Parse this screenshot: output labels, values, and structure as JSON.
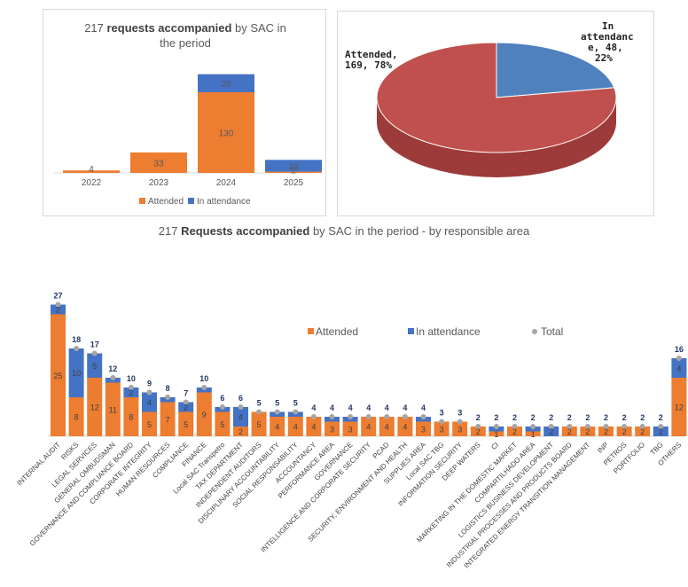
{
  "colors": {
    "attended": "#ED7D31",
    "in_attendance": "#4472C4",
    "pie_attended": "#C0504D",
    "pie_in_attendance": "#4F81BD",
    "total": "#A6A6A6",
    "total_label": "#1F3864"
  },
  "titles": {
    "years": {
      "pre": "217 ",
      "bold": "requests accompanied",
      "post": " by SAC in the period"
    },
    "area": {
      "pre": "217 ",
      "bold": "Requests accompanied",
      "post": " by SAC in the period - by responsible area"
    }
  },
  "legend": {
    "attended": "Attended",
    "in_attendance": "In attendance",
    "total": "Total"
  },
  "chart_data": [
    {
      "type": "bar",
      "stacked": true,
      "categories": [
        "2022",
        "2023",
        "2024",
        "2025"
      ],
      "series": [
        {
          "name": "Attended",
          "values": [
            4,
            33,
            130,
            2
          ]
        },
        {
          "name": "In attendance",
          "values": [
            0,
            0,
            29,
            19
          ]
        }
      ],
      "data_labels": {
        "Attended": [
          "4",
          "33",
          "130",
          "2"
        ],
        "In attendance": [
          "",
          "",
          "29",
          "19"
        ]
      },
      "legend": "bottom"
    },
    {
      "type": "pie",
      "style": "3d",
      "slices": [
        {
          "label": "Attended",
          "value": 169,
          "percent": 78,
          "text": "Attended, 169, 78%"
        },
        {
          "label": "In attendance",
          "value": 48,
          "percent": 22,
          "text": "In attendance, 48, 22%"
        }
      ]
    },
    {
      "type": "bar",
      "stacked": true,
      "categories": [
        "INTERNAL AUDIT",
        "RISKS",
        "LEGAL SERVICES",
        "GENERAL OMBUDSMAN",
        "GOVERNANCE AND COMPLIANCE BOARD",
        "CORPORATE INTEGRITY",
        "HUMAN RESOURCES",
        "COMPLIANCE",
        "FINANCE",
        "Local SAC Transpetro",
        "TAX DEPARTMENT",
        "INDEPENDENT AUDITORS",
        "DISCIPLINARY ACCOUNTABILITY",
        "SOCIAL RESPONSABILITY",
        "ACCOUNTANCY",
        "PERFORMANCE AREA",
        "GOVERNANCE",
        "INTELLIGENCE AND CORPORATE SECURITY",
        "PCAD",
        "SECURITY, ENVIRONMENT AND HEALTH",
        "SUPPLIES AREA",
        "Local SAC TBG",
        "INFORMATION SECURITY",
        "DEEP WATERS",
        "CI",
        "MARKETING IN THE DOMESTIC MARKET",
        "COMPARTILHADO AREA",
        "LOGISTICS BUSINESS DEVELOPMENT",
        "INDUSTRIAL PROCESSES AND PRODUCTS BOARD",
        "INTEGRATED ENERGY TRANSITION MANAGEMENT",
        "INP",
        "PETROS",
        "PORTFOLIO",
        "TBG",
        "OTHERS"
      ],
      "series": [
        {
          "name": "Attended",
          "values": [
            25,
            8,
            12,
            11,
            8,
            5,
            7,
            5,
            9,
            5,
            2,
            5,
            4,
            4,
            4,
            3,
            3,
            4,
            4,
            4,
            3,
            3,
            3,
            2,
            1,
            2,
            1,
            0,
            2,
            2,
            2,
            2,
            2,
            0,
            12
          ]
        },
        {
          "name": "In attendance",
          "values": [
            2,
            10,
            5,
            1,
            2,
            4,
            1,
            2,
            1,
            1,
            4,
            0,
            1,
            1,
            0,
            1,
            1,
            0,
            0,
            0,
            1,
            0,
            0,
            0,
            1,
            0,
            1,
            2,
            0,
            0,
            0,
            0,
            0,
            2,
            4
          ]
        }
      ],
      "data_labels": {
        "Attended": [
          "25",
          "8",
          "12",
          "11",
          "8",
          "5",
          "7",
          "5",
          "9",
          "5",
          "2",
          "5",
          "4",
          "4",
          "4",
          "3",
          "3",
          "4",
          "4",
          "4",
          "3",
          "3",
          "3",
          "2",
          "1",
          "2",
          "1",
          "",
          "2",
          "2",
          "2",
          "2",
          "2",
          "",
          "12"
        ],
        "In attendance": [
          "2",
          "10",
          "5",
          "",
          "2",
          "4",
          "",
          "2",
          "",
          "",
          "4",
          "",
          "",
          "",
          "",
          "",
          "",
          "",
          "",
          "",
          "",
          "",
          "",
          "",
          "",
          "",
          "",
          "2",
          "",
          "",
          "",
          "",
          "",
          "2",
          "4"
        ]
      },
      "totals": [
        27,
        18,
        17,
        12,
        10,
        9,
        8,
        7,
        10,
        6,
        6,
        5,
        5,
        5,
        4,
        4,
        4,
        4,
        4,
        4,
        4,
        3,
        3,
        2,
        2,
        2,
        2,
        2,
        2,
        2,
        2,
        2,
        2,
        2,
        16
      ],
      "legend": "top-right"
    }
  ]
}
